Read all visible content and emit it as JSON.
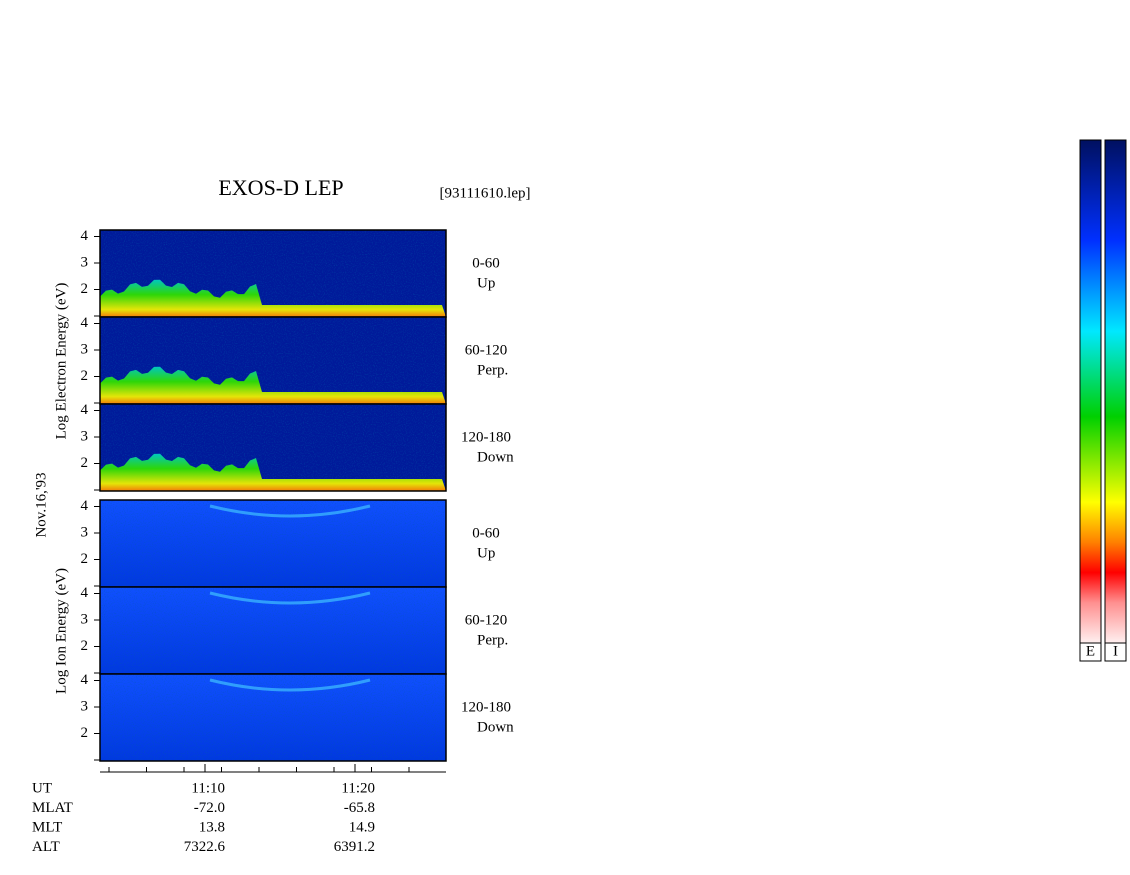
{
  "title": "EXOS-D LEP",
  "file": "[93111610.lep]",
  "date": "Nov.16,'93",
  "electron_ylabel": "Log  Electron  Energy (eV)",
  "ion_ylabel": "Log  Ion  Energy (eV)",
  "panels": [
    {
      "species": "electron",
      "range": "0-60",
      "direction": "Up",
      "yticks": [
        2,
        3,
        4
      ]
    },
    {
      "species": "electron",
      "range": "60-120",
      "direction": "Perp.",
      "yticks": [
        2,
        3,
        4
      ]
    },
    {
      "species": "electron",
      "range": "120-180",
      "direction": "Down",
      "yticks": [
        2,
        3,
        4
      ]
    },
    {
      "species": "ion",
      "range": "0-60",
      "direction": "Up",
      "yticks": [
        2,
        3,
        4
      ]
    },
    {
      "species": "ion",
      "range": "60-120",
      "direction": "Perp.",
      "yticks": [
        2,
        3,
        4
      ]
    },
    {
      "species": "ion",
      "range": "120-180",
      "direction": "Down",
      "yticks": [
        2,
        3,
        4
      ]
    }
  ],
  "orbit": [
    [
      "UT",
      "11:10",
      "11:20"
    ],
    [
      "MLAT",
      "-72.0",
      "-65.8"
    ],
    [
      "MLT",
      "13.8",
      "14.9"
    ],
    [
      "ALT",
      "7322.6",
      "6391.2"
    ]
  ],
  "colorbars": [
    "E",
    "I"
  ]
}
